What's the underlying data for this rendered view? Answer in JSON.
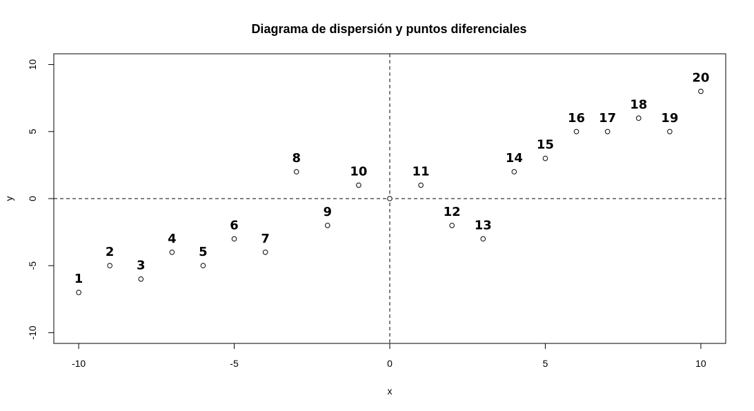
{
  "chart_data": {
    "type": "scatter",
    "title": "Diagrama de dispersión y puntos diferenciales",
    "xlabel": "x",
    "ylabel": "y",
    "xlim": [
      -10.8,
      10.8
    ],
    "ylim": [
      -10.8,
      10.8
    ],
    "x_ticks": [
      -10,
      -5,
      0,
      5,
      10
    ],
    "y_ticks": [
      -10,
      -5,
      0,
      5,
      10
    ],
    "x_tick_labels": [
      "-10",
      "-5",
      "0",
      "5",
      "10"
    ],
    "y_tick_labels": [
      "-10",
      "-5",
      "0",
      "5",
      "10"
    ],
    "reference_lines": {
      "vertical_x": 0,
      "horizontal_y": 0,
      "style": "dashed"
    },
    "grid": false,
    "points": [
      {
        "label": "1",
        "x": -10,
        "y": -7
      },
      {
        "label": "2",
        "x": -9,
        "y": -5
      },
      {
        "label": "3",
        "x": -8,
        "y": -6
      },
      {
        "label": "4",
        "x": -7,
        "y": -4
      },
      {
        "label": "5",
        "x": -6,
        "y": -5
      },
      {
        "label": "6",
        "x": -5,
        "y": -3
      },
      {
        "label": "7",
        "x": -4,
        "y": -4
      },
      {
        "label": "8",
        "x": -3,
        "y": 2
      },
      {
        "label": "9",
        "x": -2,
        "y": -2
      },
      {
        "label": "10",
        "x": -1,
        "y": 1
      },
      {
        "label": "",
        "x": 0,
        "y": 0
      },
      {
        "label": "11",
        "x": 1,
        "y": 1
      },
      {
        "label": "12",
        "x": 2,
        "y": -2
      },
      {
        "label": "13",
        "x": 3,
        "y": -3
      },
      {
        "label": "14",
        "x": 4,
        "y": 2
      },
      {
        "label": "15",
        "x": 5,
        "y": 3
      },
      {
        "label": "16",
        "x": 6,
        "y": 5
      },
      {
        "label": "17",
        "x": 7,
        "y": 5
      },
      {
        "label": "18",
        "x": 8,
        "y": 6
      },
      {
        "label": "19",
        "x": 9,
        "y": 5
      },
      {
        "label": "20",
        "x": 10,
        "y": 8
      }
    ]
  }
}
